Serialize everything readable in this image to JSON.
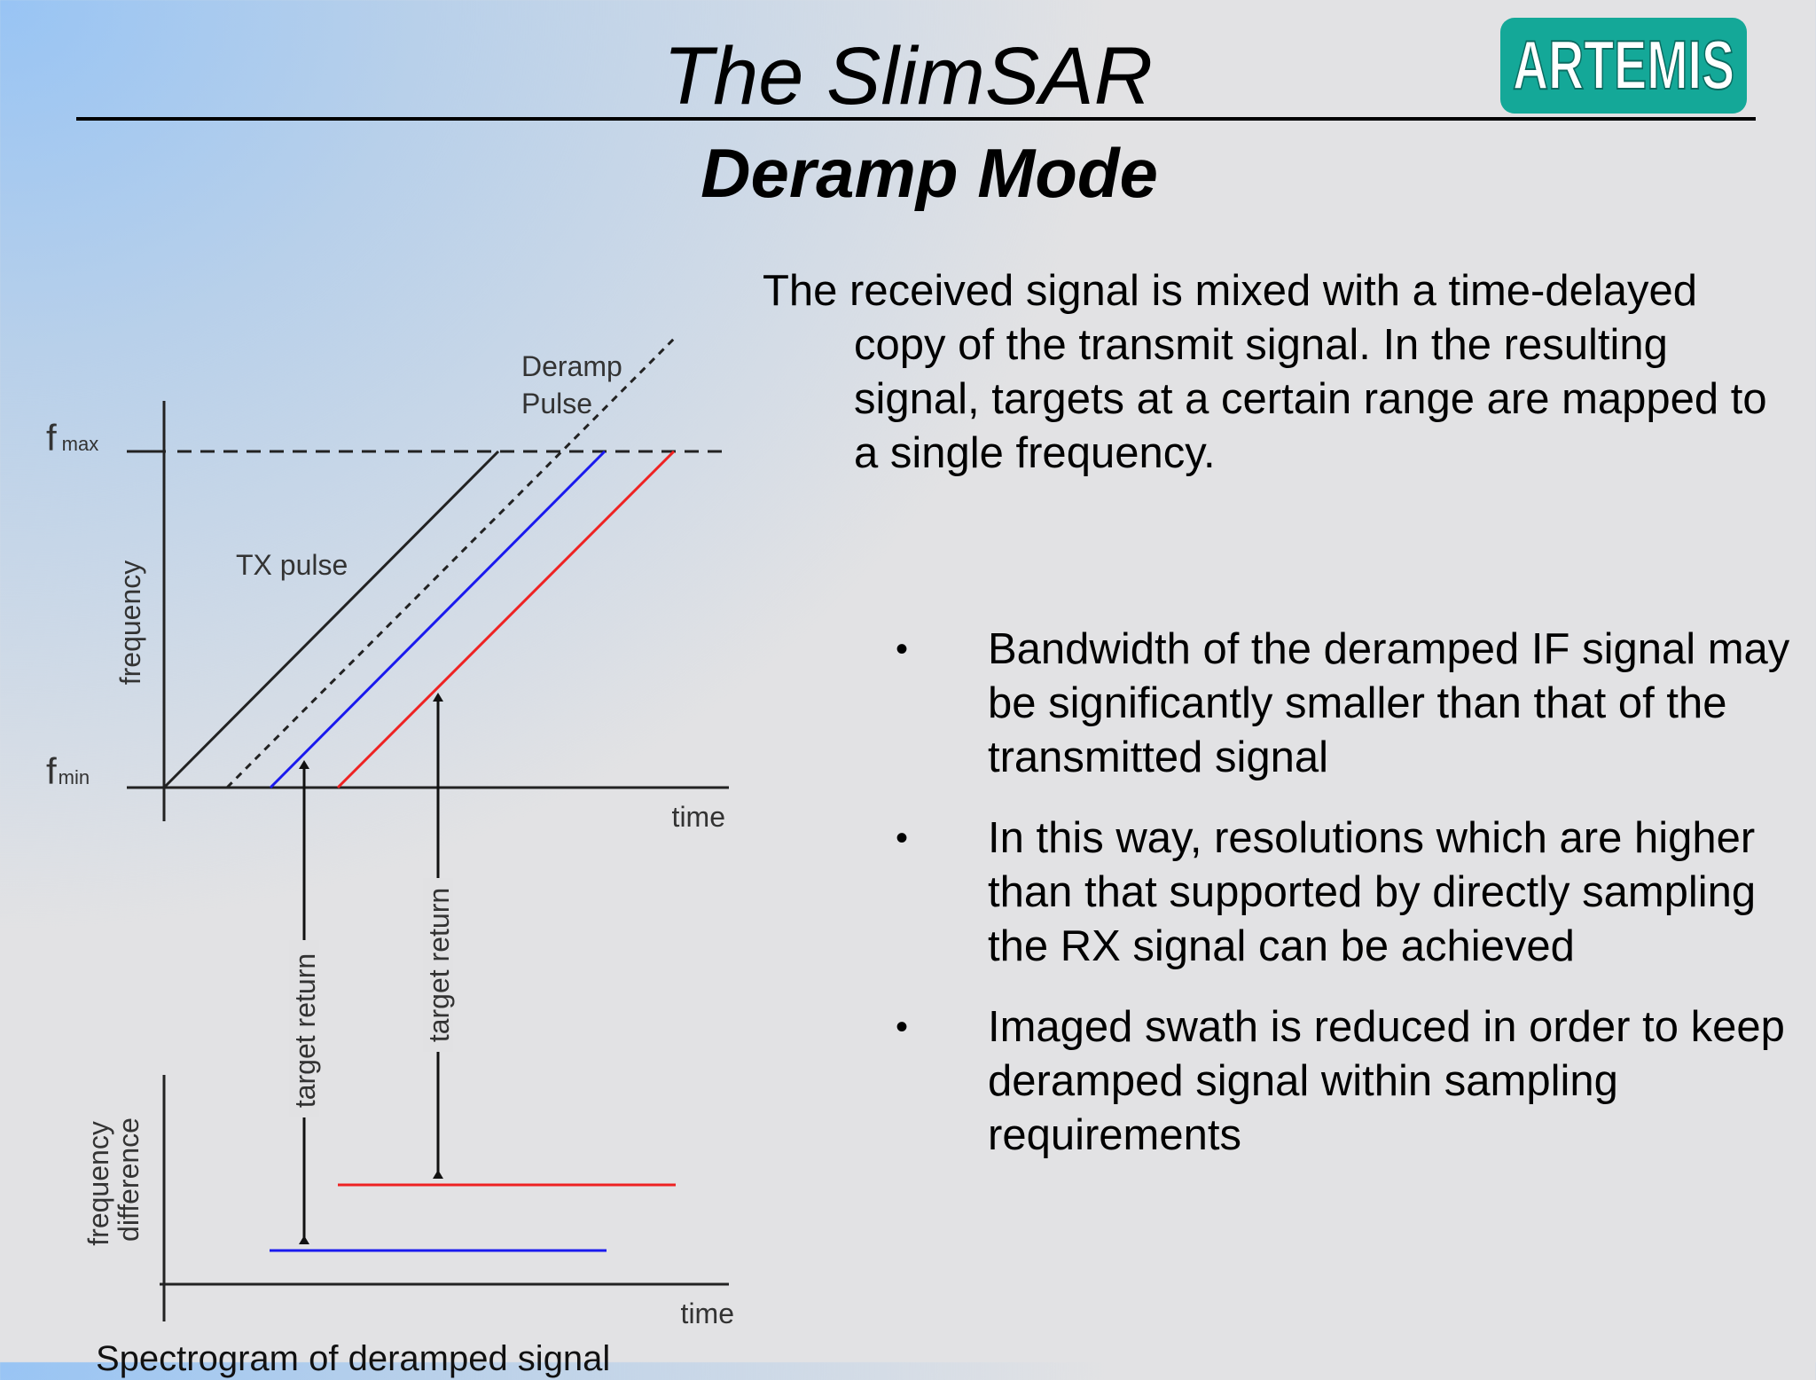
{
  "slide": {
    "title": "The SlimSAR",
    "subtitle": "Deramp Mode",
    "logo_text": "ARTEMIS",
    "intro": "The received signal is mixed with a time-delayed copy of the transmit signal.  In the resulting signal, targets at a certain range are mapped to a single frequency.",
    "bullets": [
      "Bandwidth of the deramped IF signal may be significantly smaller than that of the transmitted signal",
      "In this way, resolutions which are higher than that supported by directly sampling the RX signal can be achieved",
      "Imaged swath is reduced in order to keep deramped signal within sampling requirements"
    ],
    "bullet_symbol": "•",
    "caption": "Spectrogram  of deramped signal"
  },
  "diagram": {
    "fmax_label": "f",
    "fmax_sub": "max",
    "fmin_label": "f",
    "fmin_sub": "min",
    "frequency_axis_label": "frequency",
    "time_axis_label": "time",
    "tx_pulse_label": "TX pulse",
    "deramp_label_line1": "Deramp",
    "deramp_label_line2": "Pulse",
    "target_return_label_1": "target return",
    "target_return_label_2": "target return",
    "freq_diff_label_line1": "frequency",
    "freq_diff_label_line2": "difference",
    "lower_time_label": "time"
  },
  "colors": {
    "logo": "#14a898",
    "target_near": "#1a1aee",
    "target_far": "#ee2222",
    "axis": "#222222"
  }
}
